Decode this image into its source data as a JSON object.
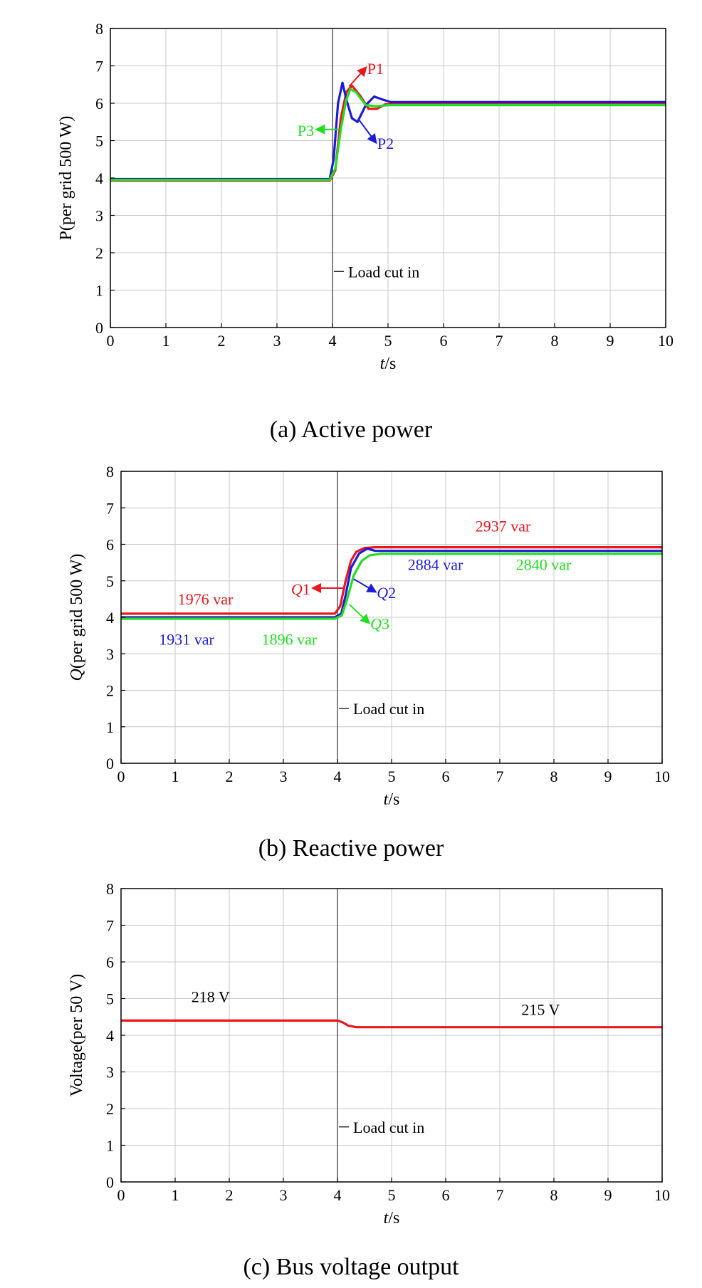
{
  "chart_data": [
    {
      "type": "line",
      "title": "",
      "caption": "(a) Active power",
      "xlabel_italic": "t",
      "xlabel_rest": "/s",
      "ylabel": "P(per grid 500 W)",
      "xlim": [
        0,
        10
      ],
      "ylim": [
        0,
        8
      ],
      "xticks": [
        "0",
        "1",
        "2",
        "3",
        "4",
        "5",
        "6",
        "7",
        "8",
        "9",
        "10"
      ],
      "yticks": [
        "0",
        "1",
        "2",
        "3",
        "4",
        "5",
        "6",
        "7",
        "8"
      ],
      "event": {
        "x": 4,
        "label": "Load cut in"
      },
      "series": [
        {
          "name": "P1",
          "color": "#e8171d",
          "x": [
            0,
            3.95,
            4.05,
            4.15,
            4.25,
            4.35,
            4.5,
            4.65,
            4.8,
            4.95,
            5.1,
            10
          ],
          "y": [
            3.93,
            3.93,
            4.2,
            5.6,
            6.3,
            6.47,
            6.2,
            5.85,
            5.85,
            5.97,
            5.98,
            5.98
          ]
        },
        {
          "name": "P2",
          "color": "#1c1cd8",
          "x": [
            0,
            3.95,
            4.02,
            4.1,
            4.18,
            4.25,
            4.35,
            4.45,
            4.6,
            4.75,
            4.9,
            5.05,
            10
          ],
          "y": [
            3.97,
            3.97,
            4.5,
            6.0,
            6.55,
            6.1,
            5.6,
            5.5,
            5.95,
            6.18,
            6.1,
            6.03,
            6.03
          ]
        },
        {
          "name": "P3",
          "color": "#22dd22",
          "x": [
            0,
            3.95,
            4.05,
            4.15,
            4.25,
            4.32,
            4.42,
            4.6,
            4.8,
            5.0,
            10
          ],
          "y": [
            3.95,
            3.95,
            4.25,
            5.3,
            6.1,
            6.38,
            6.3,
            5.95,
            5.92,
            5.95,
            5.95
          ]
        }
      ],
      "annotations": [
        {
          "label": "P1",
          "color": "#e8171d",
          "x": 4.6,
          "y": 6.95,
          "ax": 4.3,
          "ay": 6.45
        },
        {
          "label": "P2",
          "color": "#1c1cd8",
          "x": 4.78,
          "y": 4.95,
          "ax": 4.48,
          "ay": 5.55
        },
        {
          "label": "P3",
          "color": "#22dd22",
          "x": 3.72,
          "y": 5.3,
          "ax": 4.12,
          "ay": 5.3
        }
      ],
      "value_labels": []
    },
    {
      "type": "line",
      "title": "",
      "caption": "(b) Reactive power",
      "xlabel_italic": "t",
      "xlabel_rest": "/s",
      "ylabel_italic": "Q",
      "ylabel": "(per grid 500 W)",
      "xlim": [
        0,
        10
      ],
      "ylim": [
        0,
        8
      ],
      "xticks": [
        "0",
        "1",
        "2",
        "3",
        "4",
        "5",
        "6",
        "7",
        "8",
        "9",
        "10"
      ],
      "yticks": [
        "0",
        "1",
        "2",
        "3",
        "4",
        "5",
        "6",
        "7",
        "8"
      ],
      "event": {
        "x": 4,
        "label": "Load cut in"
      },
      "series": [
        {
          "name": "Q1",
          "color": "#e8171d",
          "x": [
            0,
            3.95,
            4.05,
            4.15,
            4.25,
            4.35,
            4.5,
            4.7,
            10
          ],
          "y": [
            4.1,
            4.1,
            4.3,
            5.0,
            5.55,
            5.8,
            5.9,
            5.92,
            5.92
          ]
        },
        {
          "name": "Q2",
          "color": "#1c1cd8",
          "x": [
            0,
            3.95,
            4.07,
            4.15,
            4.25,
            4.4,
            4.55,
            4.7,
            10
          ],
          "y": [
            4.0,
            4.0,
            4.1,
            4.6,
            5.35,
            5.75,
            5.88,
            5.82,
            5.82
          ]
        },
        {
          "name": "Q3",
          "color": "#22dd22",
          "x": [
            0,
            3.95,
            4.08,
            4.18,
            4.3,
            4.45,
            4.6,
            4.8,
            10
          ],
          "y": [
            3.96,
            3.96,
            4.05,
            4.5,
            5.15,
            5.55,
            5.7,
            5.74,
            5.74
          ]
        }
      ],
      "annotations": [
        {
          "label": "Q1",
          "label_italic": "Q",
          "label_rest": "1",
          "color": "#e8171d",
          "x": 3.55,
          "y": 4.8,
          "ax": 4.12,
          "ay": 4.8
        },
        {
          "label": "Q2",
          "label_italic": "Q",
          "label_rest": "2",
          "color": "#1c1cd8",
          "x": 4.7,
          "y": 4.7,
          "ax": 4.3,
          "ay": 5.05
        },
        {
          "label": "Q3",
          "label_italic": "Q",
          "label_rest": "3",
          "color": "#22dd22",
          "x": 4.58,
          "y": 3.85,
          "ax": 4.22,
          "ay": 4.35
        }
      ],
      "value_labels": [
        {
          "text": "1976 var",
          "color": "#e8171d",
          "x": 1.05,
          "y": 4.35
        },
        {
          "text": "1931 var",
          "color": "#1c1cd8",
          "x": 0.7,
          "y": 3.25
        },
        {
          "text": "1896 var",
          "color": "#22dd22",
          "x": 2.6,
          "y": 3.25
        },
        {
          "text": "2937 var",
          "color": "#e8171d",
          "x": 6.55,
          "y": 6.35
        },
        {
          "text": "2884 var",
          "color": "#1c1cd8",
          "x": 5.3,
          "y": 5.3
        },
        {
          "text": "2840 var",
          "color": "#22dd22",
          "x": 7.3,
          "y": 5.3
        }
      ]
    },
    {
      "type": "line",
      "title": "",
      "caption": "(c) Bus voltage output",
      "xlabel_italic": "t",
      "xlabel_rest": "/s",
      "ylabel": "Voltage(per 50 V)",
      "xlim": [
        0,
        10
      ],
      "ylim": [
        0,
        8
      ],
      "xticks": [
        "0",
        "1",
        "2",
        "3",
        "4",
        "5",
        "6",
        "7",
        "8",
        "9",
        "10"
      ],
      "yticks": [
        "0",
        "1",
        "2",
        "3",
        "4",
        "5",
        "6",
        "7",
        "8"
      ],
      "event": {
        "x": 4,
        "label": "Load cut in"
      },
      "series": [
        {
          "name": "Bus voltage",
          "color": "#e8171d",
          "x": [
            0,
            4.0,
            4.1,
            4.2,
            4.35,
            10
          ],
          "y": [
            4.4,
            4.4,
            4.35,
            4.26,
            4.22,
            4.22
          ]
        }
      ],
      "annotations": [],
      "value_labels": [
        {
          "text": "218 V",
          "color": "#000000",
          "x": 1.3,
          "y": 4.9
        },
        {
          "text": "215 V",
          "color": "#000000",
          "x": 7.4,
          "y": 4.55
        }
      ]
    }
  ]
}
